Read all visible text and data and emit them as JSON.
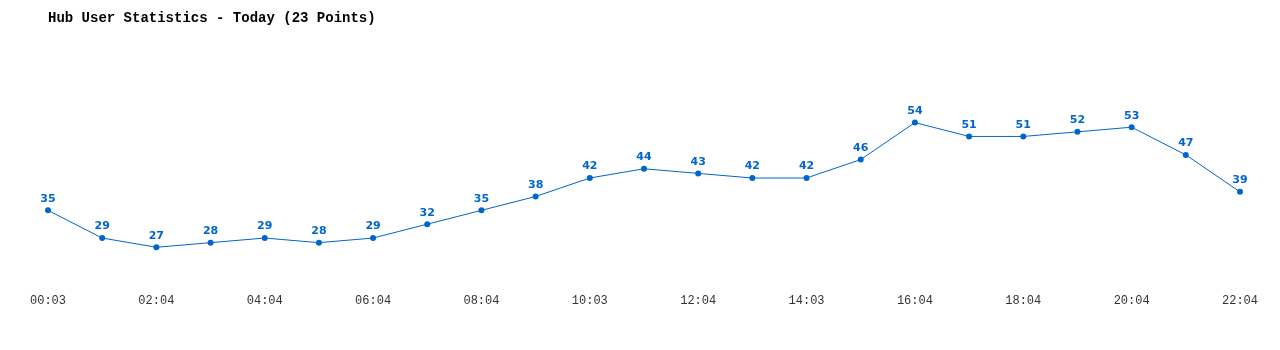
{
  "chart_data": {
    "type": "line",
    "title": "Hub User Statistics - Today (23 Points)",
    "categories": [
      "00:03",
      null,
      "02:04",
      null,
      "04:04",
      null,
      "06:04",
      null,
      "08:04",
      null,
      "10:03",
      null,
      "12:04",
      null,
      "14:03",
      null,
      "16:04",
      null,
      "18:04",
      null,
      "20:04",
      null,
      "22:04"
    ],
    "series": [
      {
        "color": "#0066cc",
        "values": [
          35,
          29,
          27,
          28,
          29,
          28,
          29,
          32,
          35,
          38,
          42,
          44,
          43,
          42,
          42,
          46,
          54,
          51,
          51,
          52,
          53,
          47,
          39
        ]
      }
    ],
    "data_labels": true,
    "grid": false,
    "legend": false,
    "marker": "circle",
    "line_style": "solid",
    "tick_labels": "x"
  }
}
